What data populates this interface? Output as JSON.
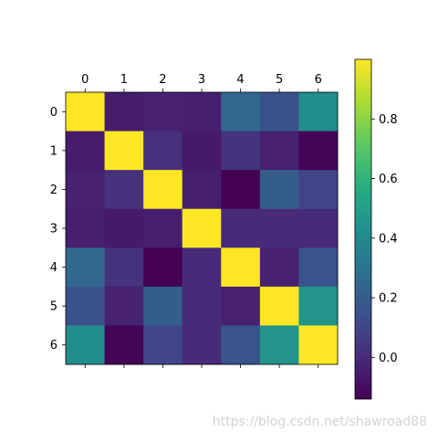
{
  "chart_data": {
    "type": "heatmap",
    "title": "",
    "xlabel": "",
    "ylabel": "",
    "x_ticks": [
      "0",
      "1",
      "2",
      "3",
      "4",
      "5",
      "6"
    ],
    "y_ticks": [
      "0",
      "1",
      "2",
      "3",
      "4",
      "5",
      "6"
    ],
    "x_tick_position": "top",
    "colormap": "viridis",
    "vmin": -0.14,
    "vmax": 1.0,
    "matrix": [
      [
        1.0,
        -0.05,
        -0.03,
        -0.04,
        0.25,
        0.15,
        0.42
      ],
      [
        -0.05,
        1.0,
        0.02,
        -0.06,
        0.03,
        -0.03,
        -0.13
      ],
      [
        -0.03,
        0.02,
        1.0,
        -0.04,
        -0.14,
        0.2,
        0.1
      ],
      [
        -0.04,
        -0.06,
        -0.04,
        1.0,
        0.0,
        0.0,
        0.0
      ],
      [
        0.25,
        0.03,
        -0.14,
        0.0,
        1.0,
        -0.03,
        0.16
      ],
      [
        0.15,
        -0.03,
        0.2,
        0.0,
        -0.03,
        1.0,
        0.45
      ],
      [
        0.42,
        -0.13,
        0.1,
        0.0,
        0.16,
        0.45,
        1.0
      ]
    ],
    "colorbar": {
      "ticks": [
        0.0,
        0.2,
        0.4,
        0.6,
        0.8
      ],
      "tick_labels": [
        "0.0",
        "0.2",
        "0.4",
        "0.6",
        "0.8"
      ]
    },
    "grid": false,
    "legend": "none"
  },
  "watermark": "https://blog.csdn.net/shawroad88"
}
